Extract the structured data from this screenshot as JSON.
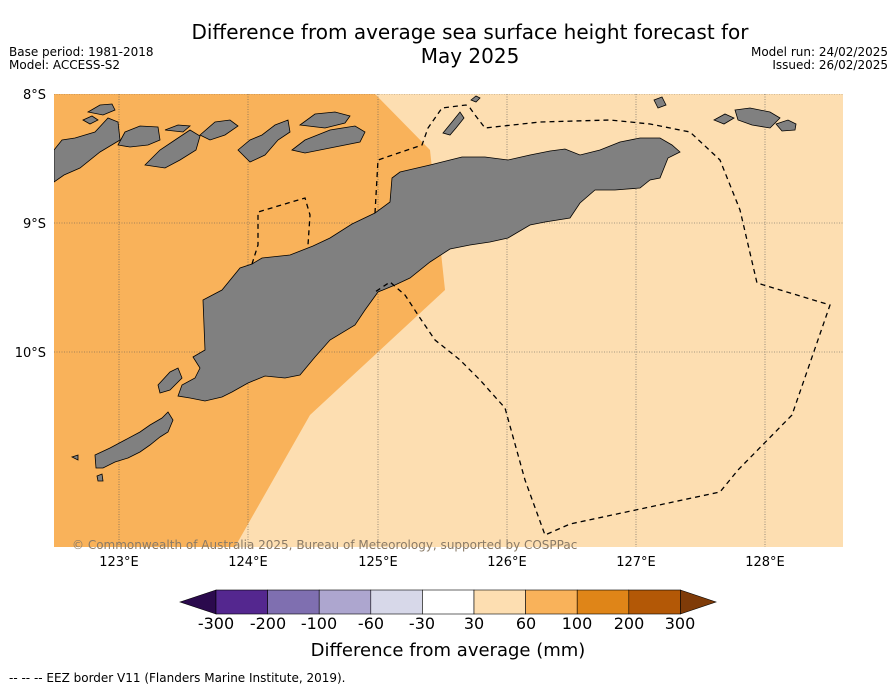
{
  "title": "Difference from average sea surface height forecast for May 2025",
  "title_line1": "Difference from average sea surface height forecast for",
  "title_line2": "May 2025",
  "meta_left": {
    "base_period": "Base period: 1981-2018",
    "model": "Model: ACCESS-S2"
  },
  "meta_right": {
    "model_run": "Model run: 24/02/2025",
    "issued": "Issued: 26/02/2025"
  },
  "map": {
    "lat_labels": [
      "8°S",
      "9°S",
      "10°S"
    ],
    "lon_labels": [
      "123°E",
      "124°E",
      "125°E",
      "126°E",
      "127°E",
      "128°E"
    ],
    "copyright": "© Commonwealth of Australia 2025, Bureau of Meteorology, supported by COSPPac",
    "colors": {
      "land": "#808080",
      "band_60_100": "#f9b25a",
      "band_30_60": "#fddeb1"
    }
  },
  "colorbar": {
    "title": "Difference from average (mm)",
    "tick_labels": [
      "-300",
      "-200",
      "-100",
      "-60",
      "-30",
      "30",
      "60",
      "100",
      "200",
      "300"
    ],
    "colors": [
      "#2b0a4d",
      "#54278f",
      "#7f6fb0",
      "#ada6cf",
      "#d7d8e9",
      "#ffffff",
      "#fddeb1",
      "#f9b25a",
      "#df8518",
      "#b35806",
      "#7f3b08"
    ]
  },
  "footnote": "--  --  -- EEZ border V11 (Flanders Marine Institute, 2019)."
}
